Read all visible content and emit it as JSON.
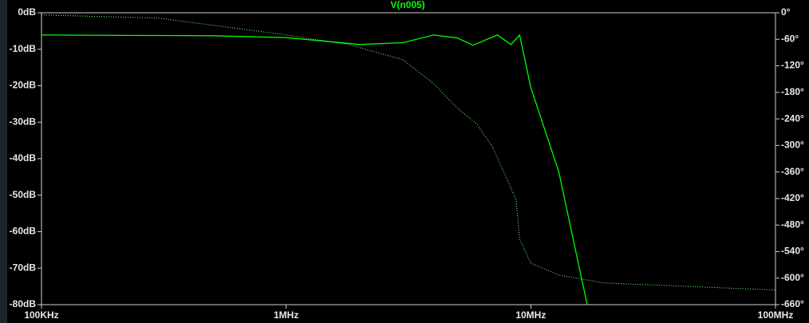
{
  "chart_data": {
    "type": "line",
    "title": "V(n005)",
    "xscale": "log",
    "x": [
      100000,
      500000,
      1000000,
      2000000,
      3000000,
      4000000,
      5000000,
      5800000,
      7300000,
      8300000,
      9000000,
      10000000,
      13000000,
      17000000
    ],
    "series": [
      {
        "name": "V(n005)",
        "color": "#00ff00",
        "dash": "solid",
        "values": [
          -6.1,
          -6.3,
          -6.8,
          -8.7,
          -8.2,
          -6.1,
          -6.9,
          -8.9,
          -6.1,
          -8.7,
          -6.1,
          -20.5,
          -43.5,
          -80
        ]
      },
      {
        "color": "#7cff7c",
        "dash": "dotted",
        "axis": "y2",
        "x": [
          100000,
          300000,
          1000000,
          1800000,
          3000000,
          4000000,
          5000000,
          6000000,
          7000000,
          8000000,
          8700000,
          9000000,
          10000000,
          13000000,
          20000000,
          50000000,
          100000000
        ],
        "values": [
          -5,
          -12,
          -50,
          -72,
          -106,
          -160,
          -215,
          -251,
          -305,
          -377,
          -422,
          -512,
          -566,
          -593,
          -611,
          -620,
          -627
        ]
      }
    ],
    "xlim": [
      100000,
      100000000
    ],
    "xticks": [
      {
        "value": 100000,
        "label": "100KHz"
      },
      {
        "value": 1000000,
        "label": "1MHz"
      },
      {
        "value": 10000000,
        "label": "10MHz"
      },
      {
        "value": 100000000,
        "label": "100MHz"
      }
    ],
    "ylim": [
      -80,
      0
    ],
    "yticks": [
      {
        "value": 0,
        "label": "0dB"
      },
      {
        "value": -10,
        "label": "-10dB"
      },
      {
        "value": -20,
        "label": "-20dB"
      },
      {
        "value": -30,
        "label": "-30dB"
      },
      {
        "value": -40,
        "label": "-40dB"
      },
      {
        "value": -50,
        "label": "-50dB"
      },
      {
        "value": -60,
        "label": "-60dB"
      },
      {
        "value": -70,
        "label": "-70dB"
      },
      {
        "value": -80,
        "label": "-80dB"
      }
    ],
    "y2lim": [
      -660,
      0
    ],
    "y2ticks": [
      {
        "value": 0,
        "label": "0°"
      },
      {
        "value": -60,
        "label": "-60°"
      },
      {
        "value": -120,
        "label": "-120°"
      },
      {
        "value": -180,
        "label": "-180°"
      },
      {
        "value": -240,
        "label": "-240°"
      },
      {
        "value": -300,
        "label": "-300°"
      },
      {
        "value": -360,
        "label": "-360°"
      },
      {
        "value": -420,
        "label": "-420°"
      },
      {
        "value": -480,
        "label": "-480°"
      },
      {
        "value": -540,
        "label": "-540°"
      },
      {
        "value": -600,
        "label": "-600°"
      },
      {
        "value": -660,
        "label": "-660°"
      }
    ],
    "grid": false
  }
}
